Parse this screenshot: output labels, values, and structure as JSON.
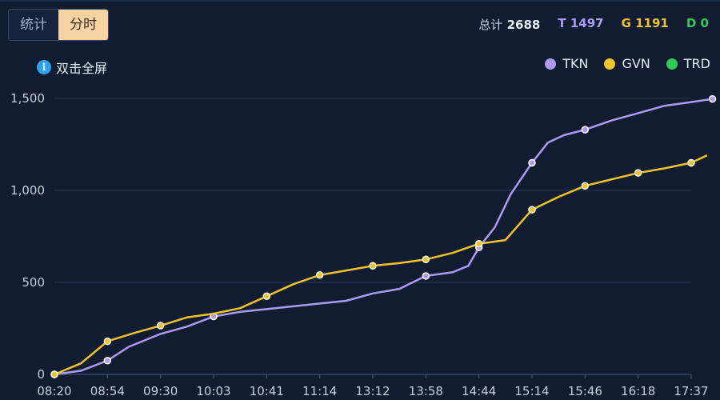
{
  "tabs": [
    "统计",
    "分时"
  ],
  "active_tab": 1,
  "totals": {
    "total_label": "总计",
    "total_value": "2688",
    "tkn": "T 1497",
    "gvn": "G 1191",
    "trd": "D 0"
  },
  "fullscreen_label": "双击全屏",
  "colors": {
    "TKN": "#a99cf3",
    "GVN": "#f0c328",
    "TRD": "#34c759",
    "grid": "#2a3852",
    "axis_text": "#c5cfdc"
  },
  "chart_data": {
    "type": "line",
    "ylim": [
      0,
      1500
    ],
    "yticks": [
      0,
      500,
      1000,
      1500
    ],
    "ytick_labels": [
      "0",
      "500",
      "1,000",
      "1,500"
    ],
    "xticks": [
      "08:20",
      "08:54",
      "09:30",
      "10:03",
      "10:41",
      "11:14",
      "13:12",
      "13:58",
      "14:44",
      "15:14",
      "15:46",
      "16:18",
      "17:37"
    ],
    "legend": {
      "position": "top-right"
    },
    "series": [
      {
        "name": "TKN",
        "points": [
          [
            0,
            0
          ],
          [
            0.5,
            20
          ],
          [
            1,
            75
          ],
          [
            1.4,
            150
          ],
          [
            2,
            220
          ],
          [
            2.5,
            260
          ],
          [
            3,
            315
          ],
          [
            3.5,
            340
          ],
          [
            4,
            355
          ],
          [
            4.5,
            370
          ],
          [
            5,
            385
          ],
          [
            5.5,
            400
          ],
          [
            6,
            440
          ],
          [
            6.5,
            465
          ],
          [
            7,
            535
          ],
          [
            7.5,
            555
          ],
          [
            7.8,
            590
          ],
          [
            8,
            690
          ],
          [
            8.3,
            800
          ],
          [
            8.6,
            980
          ],
          [
            9,
            1150
          ],
          [
            9.3,
            1260
          ],
          [
            9.6,
            1300
          ],
          [
            10,
            1330
          ],
          [
            10.5,
            1380
          ],
          [
            11,
            1420
          ],
          [
            11.5,
            1460
          ],
          [
            12,
            1480
          ],
          [
            12.4,
            1497
          ]
        ],
        "markers": [
          [
            0,
            0
          ],
          [
            1,
            75
          ],
          [
            3,
            315
          ],
          [
            7,
            535
          ],
          [
            8,
            690
          ],
          [
            9,
            1150
          ],
          [
            10,
            1330
          ],
          [
            12.4,
            1497
          ]
        ]
      },
      {
        "name": "GVN",
        "points": [
          [
            0,
            0
          ],
          [
            0.5,
            60
          ],
          [
            1,
            180
          ],
          [
            1.5,
            225
          ],
          [
            2,
            265
          ],
          [
            2.5,
            310
          ],
          [
            3,
            330
          ],
          [
            3.5,
            360
          ],
          [
            4,
            425
          ],
          [
            4.5,
            490
          ],
          [
            5,
            540
          ],
          [
            5.5,
            565
          ],
          [
            6,
            590
          ],
          [
            6.5,
            605
          ],
          [
            7,
            625
          ],
          [
            7.5,
            660
          ],
          [
            8,
            710
          ],
          [
            8.5,
            730
          ],
          [
            9,
            895
          ],
          [
            9.5,
            965
          ],
          [
            10,
            1025
          ],
          [
            10.5,
            1060
          ],
          [
            11,
            1095
          ],
          [
            11.5,
            1120
          ],
          [
            12,
            1150
          ],
          [
            12.3,
            1191
          ]
        ],
        "markers": [
          [
            0,
            0
          ],
          [
            1,
            180
          ],
          [
            2,
            265
          ],
          [
            4,
            425
          ],
          [
            5,
            540
          ],
          [
            6,
            590
          ],
          [
            7,
            625
          ],
          [
            8,
            710
          ],
          [
            9,
            895
          ],
          [
            10,
            1025
          ],
          [
            11,
            1095
          ],
          [
            12,
            1150
          ]
        ]
      },
      {
        "name": "TRD",
        "points": [],
        "markers": []
      }
    ]
  }
}
